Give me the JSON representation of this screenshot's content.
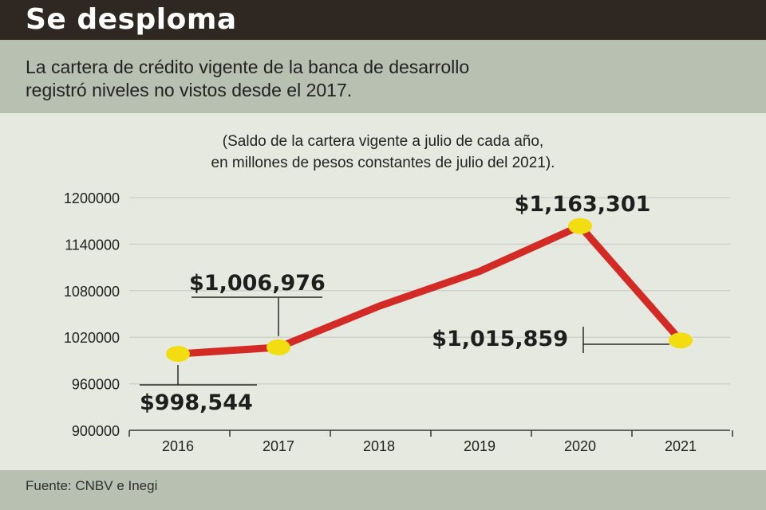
{
  "header": {
    "title": "Se desploma",
    "summary_line1": "La cartera de crédito vigente de la banca de desarrollo",
    "summary_line2": "registró niveles no vistos desde el 2017.",
    "note_line1": "(Saldo de la cartera vigente a julio de cada año,",
    "note_line2": "en millones de pesos constantes de julio del 2021)."
  },
  "footer": {
    "source": "Fuente: CNBV e Inegi"
  },
  "colors": {
    "line": "#d42a25",
    "marker": "#f2dd10",
    "grid": "#cfd2c9",
    "title_bg": "#2e2722",
    "band_bg": "#b8c0b1"
  },
  "chart_data": {
    "type": "line",
    "x": [
      "2016",
      "2017",
      "2018",
      "2019",
      "2020",
      "2021"
    ],
    "series": [
      {
        "values": [
          998544,
          1006976,
          1060000,
          1105000,
          1163301,
          1015859
        ]
      }
    ],
    "highlighted_points": [
      0,
      1,
      4,
      5
    ],
    "data_labels": [
      {
        "index": 0,
        "text": "$998,544"
      },
      {
        "index": 1,
        "text": "$1,006,976"
      },
      {
        "index": 4,
        "text": "$1,163,301"
      },
      {
        "index": 5,
        "text": "$1,015,859"
      }
    ],
    "y_ticks": [
      900000,
      960000,
      1020000,
      1080000,
      1140000,
      1200000
    ],
    "y_tick_labels": [
      "900000",
      "960000",
      "1020000",
      "1080000",
      "1140000",
      "1200000"
    ],
    "ylim": [
      900000,
      1200000
    ],
    "grid": true,
    "title": "",
    "xlabel": "",
    "ylabel": ""
  }
}
